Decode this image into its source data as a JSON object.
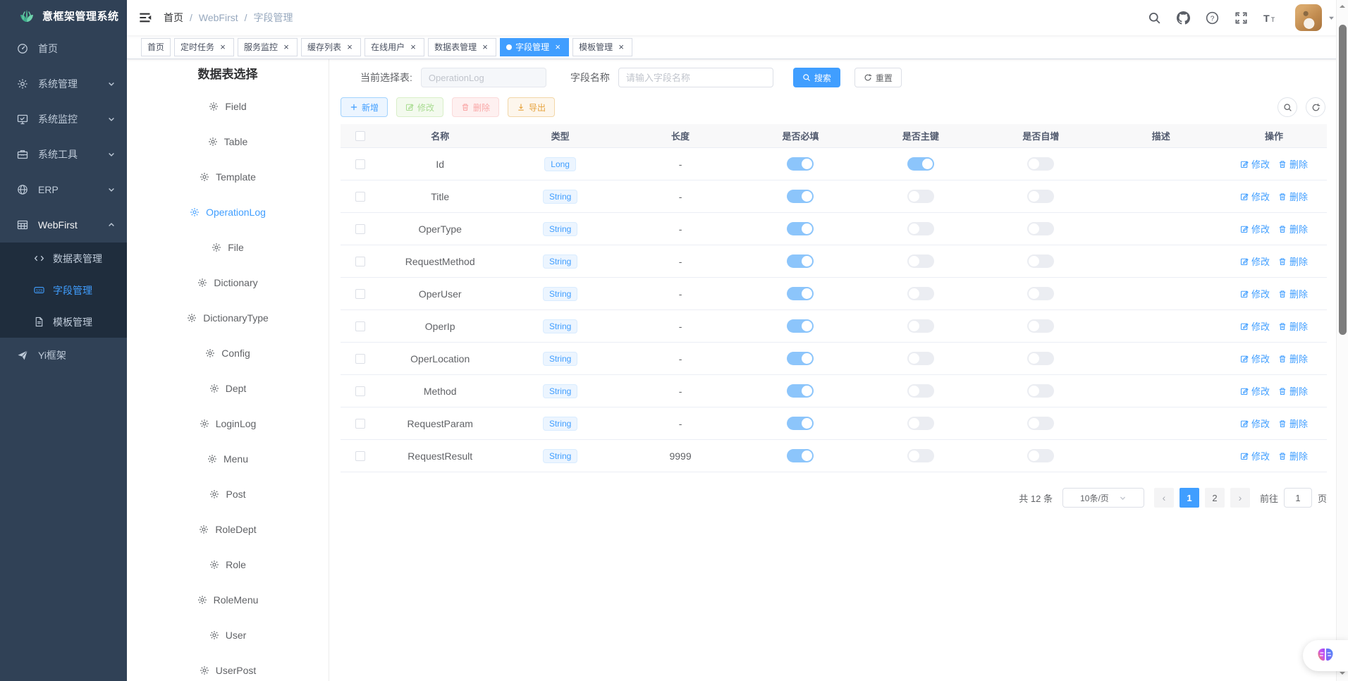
{
  "app": {
    "title": "意框架管理系统"
  },
  "navbar": {
    "breadcrumb": [
      "首页",
      "WebFirst",
      "字段管理"
    ],
    "separator": "/",
    "action_icons": [
      "search-icon",
      "github-icon",
      "help-icon",
      "fullscreen-icon",
      "font-size-icon"
    ]
  },
  "sidebar": {
    "items": [
      {
        "icon": "dashboard-icon",
        "label": "首页"
      },
      {
        "icon": "gear-icon",
        "label": "系统管理",
        "chevron": "down"
      },
      {
        "icon": "monitor-icon",
        "label": "系统监控",
        "chevron": "down"
      },
      {
        "icon": "toolbox-icon",
        "label": "系统工具",
        "chevron": "down"
      },
      {
        "icon": "globe-icon",
        "label": "ERP",
        "chevron": "down"
      },
      {
        "icon": "table-icon",
        "label": "WebFirst",
        "chevron": "up",
        "expanded": true,
        "children": [
          {
            "icon": "code-icon",
            "label": "数据表管理",
            "active": false
          },
          {
            "icon": "number-field-icon",
            "label": "字段管理",
            "active": true
          },
          {
            "icon": "document-icon",
            "label": "模板管理",
            "active": false
          }
        ]
      },
      {
        "icon": "paper-plane-icon",
        "label": "Yi框架"
      }
    ]
  },
  "tabs": [
    {
      "label": "首页",
      "closable": false,
      "active": false
    },
    {
      "label": "定时任务",
      "closable": true,
      "active": false
    },
    {
      "label": "服务监控",
      "closable": true,
      "active": false
    },
    {
      "label": "缓存列表",
      "closable": true,
      "active": false
    },
    {
      "label": "在线用户",
      "closable": true,
      "active": false
    },
    {
      "label": "数据表管理",
      "closable": true,
      "active": false
    },
    {
      "label": "字段管理",
      "closable": true,
      "active": true
    },
    {
      "label": "模板管理",
      "closable": true,
      "active": false
    }
  ],
  "table_select": {
    "title": "数据表选择",
    "active_item": "OperationLog",
    "items": [
      "Field",
      "Table",
      "Template",
      "OperationLog",
      "File",
      "Dictionary",
      "DictionaryType",
      "Config",
      "Dept",
      "LoginLog",
      "Menu",
      "Post",
      "RoleDept",
      "Role",
      "RoleMenu",
      "User",
      "UserPost"
    ]
  },
  "search": {
    "table_label": "当前选择表:",
    "table_value": "OperationLog",
    "field_label": "字段名称",
    "field_placeholder": "请输入字段名称",
    "search_label": "搜索",
    "reset_label": "重置"
  },
  "toolbar": {
    "add_label": "新增",
    "edit_label": "修改",
    "delete_label": "删除",
    "export_label": "导出"
  },
  "grid": {
    "columns": [
      "名称",
      "类型",
      "长度",
      "是否必填",
      "是否主键",
      "是否自增",
      "描述",
      "操作"
    ],
    "action_edit": "修改",
    "action_delete": "删除",
    "rows": [
      {
        "name": "Id",
        "type": "Long",
        "length": "-",
        "required": true,
        "primary_key": true,
        "auto_increment": false,
        "description": ""
      },
      {
        "name": "Title",
        "type": "String",
        "length": "-",
        "required": true,
        "primary_key": false,
        "auto_increment": false,
        "description": ""
      },
      {
        "name": "OperType",
        "type": "String",
        "length": "-",
        "required": true,
        "primary_key": false,
        "auto_increment": false,
        "description": ""
      },
      {
        "name": "RequestMethod",
        "type": "String",
        "length": "-",
        "required": true,
        "primary_key": false,
        "auto_increment": false,
        "description": ""
      },
      {
        "name": "OperUser",
        "type": "String",
        "length": "-",
        "required": true,
        "primary_key": false,
        "auto_increment": false,
        "description": ""
      },
      {
        "name": "OperIp",
        "type": "String",
        "length": "-",
        "required": true,
        "primary_key": false,
        "auto_increment": false,
        "description": ""
      },
      {
        "name": "OperLocation",
        "type": "String",
        "length": "-",
        "required": true,
        "primary_key": false,
        "auto_increment": false,
        "description": ""
      },
      {
        "name": "Method",
        "type": "String",
        "length": "-",
        "required": true,
        "primary_key": false,
        "auto_increment": false,
        "description": ""
      },
      {
        "name": "RequestParam",
        "type": "String",
        "length": "-",
        "required": true,
        "primary_key": false,
        "auto_increment": false,
        "description": ""
      },
      {
        "name": "RequestResult",
        "type": "String",
        "length": "9999",
        "required": true,
        "primary_key": false,
        "auto_increment": false,
        "description": ""
      }
    ]
  },
  "pagination": {
    "total": "共 12 条",
    "page_size": "10条/页",
    "pages": [
      "1",
      "2"
    ],
    "active_page": "1",
    "prev": "‹",
    "next": "›",
    "goto_label": "前往",
    "goto_value": "1",
    "unit_label": "页"
  },
  "colors": {
    "accent": "#409eff",
    "toggle_on": "#8cc5fb",
    "sidebar_bg": "#304156",
    "submenu_bg": "#1f2d3d"
  }
}
